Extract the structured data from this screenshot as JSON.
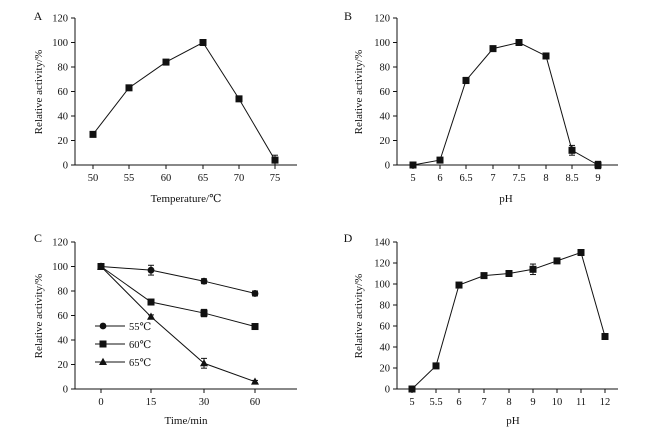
{
  "chart_data": [
    {
      "panel": "A",
      "type": "line",
      "xlabel": "Temperature/℃",
      "ylabel": "Relative activity/%",
      "categories": [
        "50",
        "55",
        "60",
        "65",
        "70",
        "75"
      ],
      "ylim": [
        0,
        120
      ],
      "yticks": [
        "0",
        "20",
        "40",
        "60",
        "80",
        "100",
        "120"
      ],
      "series": [
        {
          "name": "activity",
          "marker": "square",
          "values": [
            25,
            63,
            84,
            100,
            54,
            4
          ],
          "errors": [
            0,
            1.5,
            1.5,
            1.5,
            2,
            4
          ]
        }
      ]
    },
    {
      "panel": "B",
      "type": "line",
      "xlabel": "pH",
      "ylabel": "Relative activity/%",
      "categories": [
        "5",
        "6",
        "6.5",
        "7",
        "7.5",
        "8",
        "8.5",
        "9"
      ],
      "ylim": [
        0,
        120
      ],
      "yticks": [
        "0",
        "20",
        "40",
        "60",
        "80",
        "100",
        "120"
      ],
      "series": [
        {
          "name": "activity",
          "marker": "square",
          "values": [
            0,
            4,
            69,
            95,
            100,
            89,
            12,
            0
          ],
          "errors": [
            0,
            2,
            2.5,
            1.5,
            1.5,
            1.5,
            4,
            3
          ]
        }
      ]
    },
    {
      "panel": "C",
      "type": "line",
      "xlabel": "Time/min",
      "ylabel": "Relative activity/%",
      "categories": [
        "0",
        "15",
        "30",
        "60"
      ],
      "ylim": [
        0,
        120
      ],
      "yticks": [
        "0",
        "20",
        "40",
        "60",
        "80",
        "100",
        "120"
      ],
      "legend_position": "left",
      "series": [
        {
          "name": "55℃",
          "marker": "circle",
          "values": [
            100,
            97,
            88,
            78
          ],
          "errors": [
            0,
            4,
            2,
            2
          ]
        },
        {
          "name": "60℃",
          "marker": "square",
          "values": [
            100,
            71,
            62,
            51
          ],
          "errors": [
            0,
            2,
            3,
            2
          ]
        },
        {
          "name": "65℃",
          "marker": "triangle",
          "values": [
            100,
            59,
            21,
            6
          ],
          "errors": [
            0,
            1.5,
            4,
            1
          ]
        }
      ]
    },
    {
      "panel": "D",
      "type": "line",
      "xlabel": "pH",
      "ylabel": "Relative activity/%",
      "categories": [
        "5",
        "5.5",
        "6",
        "7",
        "8",
        "9",
        "10",
        "11",
        "12"
      ],
      "ylim": [
        0,
        140
      ],
      "yticks": [
        "0",
        "20",
        "40",
        "60",
        "80",
        "100",
        "120",
        "140"
      ],
      "series": [
        {
          "name": "activity",
          "marker": "square",
          "values": [
            0,
            22,
            99,
            108,
            110,
            114,
            122,
            130,
            50
          ],
          "errors": [
            0,
            1,
            1.5,
            1.5,
            1.5,
            5,
            2,
            1,
            1
          ]
        }
      ]
    }
  ]
}
